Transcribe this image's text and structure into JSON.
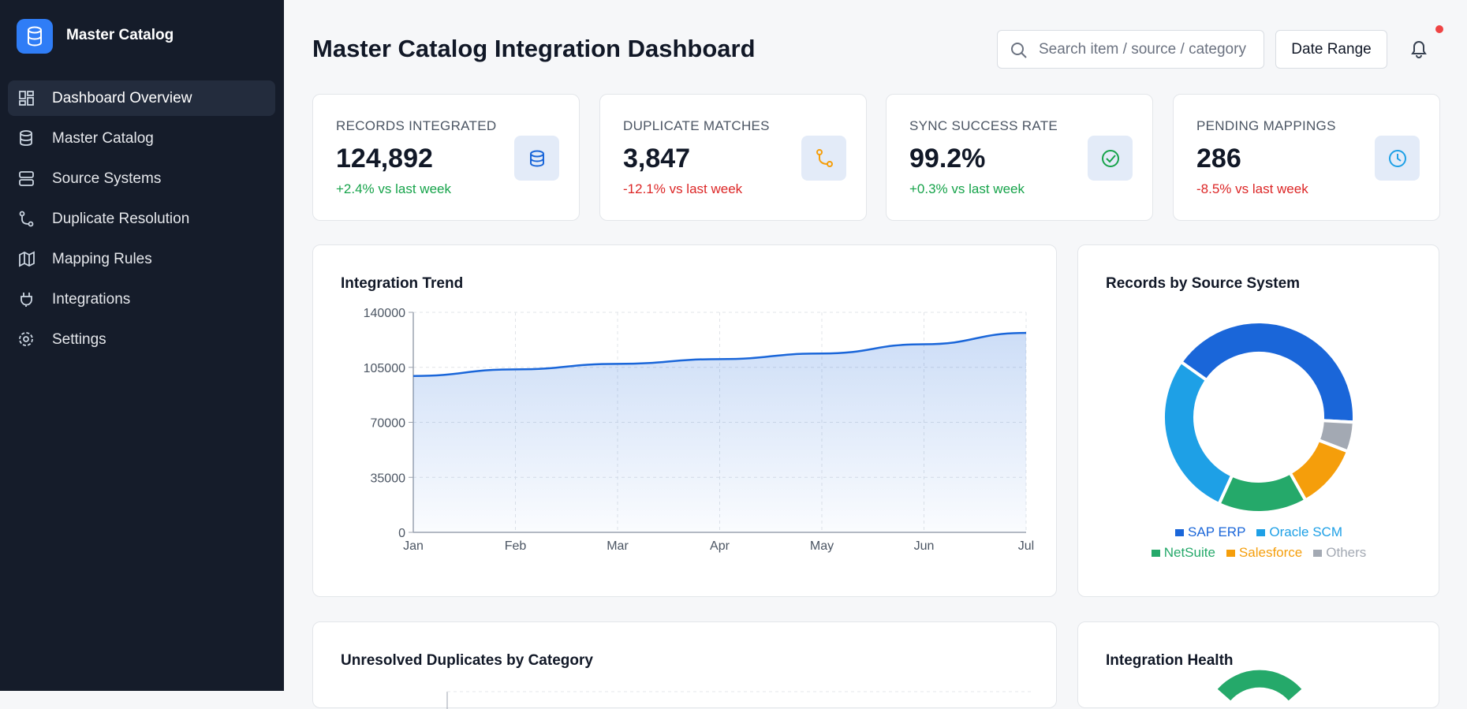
{
  "sidebar": {
    "brand": "Master Catalog",
    "nav": [
      "Dashboard Overview",
      "Master Catalog",
      "Source Systems",
      "Duplicate Resolution",
      "Mapping Rules",
      "Integrations",
      "Settings"
    ]
  },
  "header": {
    "title": "Master Catalog Integration Dashboard",
    "search_placeholder": "Search item / source / category",
    "date_button": "Date Range"
  },
  "kpis": [
    {
      "label": "RECORDS INTEGRATED",
      "value": "124,892",
      "delta": "+2.4% vs last week"
    },
    {
      "label": "DUPLICATE MATCHES",
      "value": "3,847",
      "delta": "-12.1% vs last week"
    },
    {
      "label": "SYNC SUCCESS RATE",
      "value": "99.2%",
      "delta": "+0.3% vs last week"
    },
    {
      "label": "PENDING MAPPINGS",
      "value": "286",
      "delta": "-8.5% vs last week"
    }
  ],
  "chart_data": [
    {
      "type": "line",
      "title": "Integration Trend",
      "categories": [
        "Jan",
        "Feb",
        "Mar",
        "Apr",
        "May",
        "Jun",
        "Jul"
      ],
      "values": [
        99500,
        103700,
        107200,
        110200,
        113800,
        119700,
        126900
      ],
      "color": "#1a66d9",
      "ylim": [
        0,
        140000
      ],
      "yticks": [
        0,
        35000,
        70000,
        105000,
        140000
      ],
      "grid": true
    },
    {
      "type": "pie",
      "title": "Records by Source System",
      "categories": [
        "SAP ERP",
        "Oracle SCM",
        "NetSuite",
        "Salesforce",
        "Others"
      ],
      "values": [
        41,
        28,
        15,
        11,
        5
      ],
      "colors": [
        "#1a66d9",
        "#1ea0e6",
        "#25a96a",
        "#f59e0b",
        "#a3a9b3"
      ]
    }
  ],
  "panels": [
    "Unresolved Duplicates by Category",
    "Integration Health"
  ]
}
